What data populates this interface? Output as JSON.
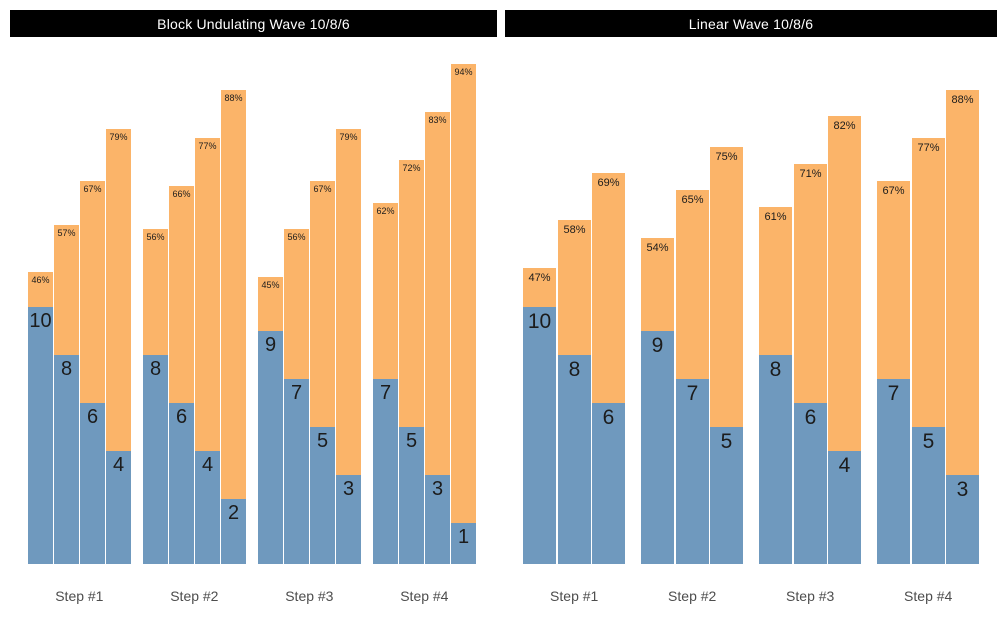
{
  "colors": {
    "reps_fill": "#6f99be",
    "intensity_fill": "#fbb469",
    "title_bg": "#000000",
    "title_text": "#ffffff",
    "bar_label_text": "#1c1c1c",
    "axis_label_text": "#4d4d4d",
    "background": "#ffffff"
  },
  "chart_data": [
    {
      "type": "bar",
      "stacked": true,
      "title": "Block Undulating Wave 10/8/6",
      "xlabel": "",
      "ylabel": "",
      "grid": false,
      "legend": null,
      "categories": [
        "Step #1",
        "Step #2",
        "Step #3",
        "Step #4"
      ],
      "groups": [
        {
          "category": "Step #1",
          "bars": [
            {
              "reps": 10,
              "intensity_pct": 46
            },
            {
              "reps": 8,
              "intensity_pct": 57
            },
            {
              "reps": 6,
              "intensity_pct": 67
            },
            {
              "reps": 4,
              "intensity_pct": 79
            }
          ]
        },
        {
          "category": "Step #2",
          "bars": [
            {
              "reps": 8,
              "intensity_pct": 56
            },
            {
              "reps": 6,
              "intensity_pct": 66
            },
            {
              "reps": 4,
              "intensity_pct": 77
            },
            {
              "reps": 2,
              "intensity_pct": 88
            }
          ]
        },
        {
          "category": "Step #3",
          "bars": [
            {
              "reps": 9,
              "intensity_pct": 45
            },
            {
              "reps": 7,
              "intensity_pct": 56
            },
            {
              "reps": 5,
              "intensity_pct": 67
            },
            {
              "reps": 3,
              "intensity_pct": 79
            }
          ]
        },
        {
          "category": "Step #4",
          "bars": [
            {
              "reps": 7,
              "intensity_pct": 62
            },
            {
              "reps": 5,
              "intensity_pct": 72
            },
            {
              "reps": 3,
              "intensity_pct": 83
            },
            {
              "reps": 1,
              "intensity_pct": 94
            }
          ]
        }
      ]
    },
    {
      "type": "bar",
      "stacked": true,
      "title": "Linear Wave 10/8/6",
      "xlabel": "",
      "ylabel": "",
      "grid": false,
      "legend": null,
      "categories": [
        "Step #1",
        "Step #2",
        "Step #3",
        "Step #4"
      ],
      "groups": [
        {
          "category": "Step #1",
          "bars": [
            {
              "reps": 10,
              "intensity_pct": 47
            },
            {
              "reps": 8,
              "intensity_pct": 58
            },
            {
              "reps": 6,
              "intensity_pct": 69
            }
          ]
        },
        {
          "category": "Step #2",
          "bars": [
            {
              "reps": 9,
              "intensity_pct": 54
            },
            {
              "reps": 7,
              "intensity_pct": 65
            },
            {
              "reps": 5,
              "intensity_pct": 75
            }
          ]
        },
        {
          "category": "Step #3",
          "bars": [
            {
              "reps": 8,
              "intensity_pct": 61
            },
            {
              "reps": 6,
              "intensity_pct": 71
            },
            {
              "reps": 4,
              "intensity_pct": 82
            }
          ]
        },
        {
          "category": "Step #4",
          "bars": [
            {
              "reps": 7,
              "intensity_pct": 67
            },
            {
              "reps": 5,
              "intensity_pct": 77
            },
            {
              "reps": 3,
              "intensity_pct": 88
            }
          ]
        }
      ]
    }
  ]
}
